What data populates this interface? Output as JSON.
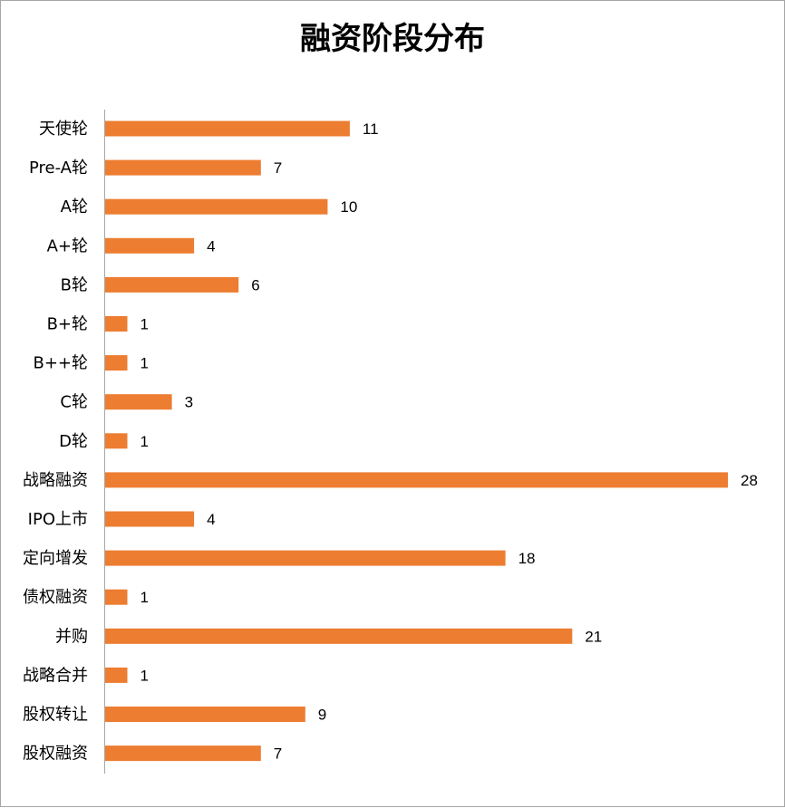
{
  "chart_data": {
    "type": "bar",
    "orientation": "horizontal",
    "title": "融资阶段分布",
    "categories": [
      "天使轮",
      "Pre-A轮",
      "A轮",
      "A+轮",
      "B轮",
      "B+轮",
      "B++轮",
      "C轮",
      "D轮",
      "战略融资",
      "IPO上市",
      "定向增发",
      "债权融资",
      "并购",
      "战略合并",
      "股权转让",
      "股权融资"
    ],
    "values": [
      11,
      7,
      10,
      4,
      6,
      1,
      1,
      3,
      1,
      28,
      4,
      18,
      1,
      21,
      1,
      9,
      7
    ],
    "data_labels": true,
    "grid": false,
    "legend": "none",
    "xlim": [
      0,
      28
    ],
    "bar_color": "#ED7D31"
  }
}
